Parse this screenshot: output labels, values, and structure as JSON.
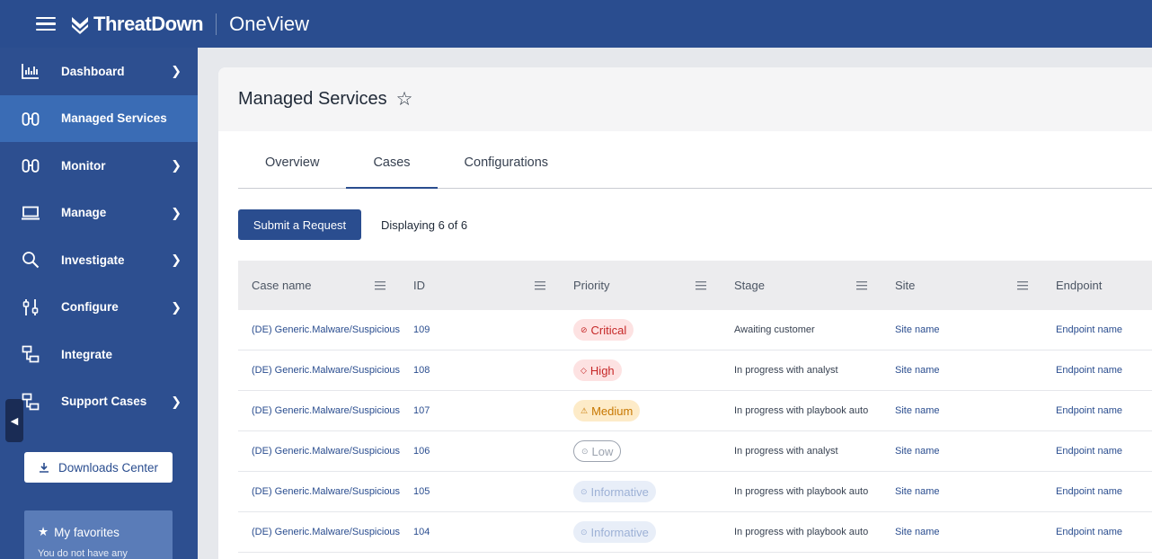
{
  "header": {
    "brand": "ThreatDown",
    "product": "OneView",
    "brand_color": "#2a4d8f"
  },
  "sidebar": {
    "items": [
      {
        "label": "Dashboard",
        "icon": "bar-chart-icon",
        "chevron": true,
        "active": false
      },
      {
        "label": "Managed Services",
        "icon": "binoculars-icon",
        "chevron": false,
        "active": true
      },
      {
        "label": "Monitor",
        "icon": "binoculars-icon",
        "chevron": true,
        "active": false
      },
      {
        "label": "Manage",
        "icon": "laptop-icon",
        "chevron": true,
        "active": false
      },
      {
        "label": "Investigate",
        "icon": "search-icon",
        "chevron": true,
        "active": false
      },
      {
        "label": "Configure",
        "icon": "sliders-icon",
        "chevron": true,
        "active": false
      },
      {
        "label": "Integrate",
        "icon": "integrate-icon",
        "chevron": false,
        "active": false
      },
      {
        "label": "Support Cases",
        "icon": "integrate-icon",
        "chevron": true,
        "active": false
      }
    ],
    "downloads_label": "Downloads Center",
    "favorites_label": "My favorites",
    "favorites_sub": "You do not have any"
  },
  "main": {
    "title": "Managed Services",
    "tabs": [
      {
        "label": "Overview",
        "active": false
      },
      {
        "label": "Cases",
        "active": true
      },
      {
        "label": "Configurations",
        "active": false
      }
    ],
    "submit_label": "Submit a Request",
    "displaying": "Displaying 6 of 6"
  },
  "table": {
    "columns": [
      "Case name",
      "ID",
      "Priority",
      "Stage",
      "Site",
      "Endpoint"
    ],
    "rows": [
      {
        "case": "(DE) Generic.Malware/Suspicious",
        "id": "109",
        "priority": "Critical",
        "level": "critical",
        "stage": "Awaiting customer",
        "site": "Site name",
        "endpoint": "Endpoint name"
      },
      {
        "case": "(DE) Generic.Malware/Suspicious",
        "id": "108",
        "priority": "High",
        "level": "high",
        "stage": "In progress with analyst",
        "site": "Site name",
        "endpoint": "Endpoint name"
      },
      {
        "case": "(DE) Generic.Malware/Suspicious",
        "id": "107",
        "priority": "Medium",
        "level": "medium",
        "stage": "In progress with playbook auto",
        "site": "Site name",
        "endpoint": "Endpoint name"
      },
      {
        "case": "(DE) Generic.Malware/Suspicious",
        "id": "106",
        "priority": "Low",
        "level": "low",
        "stage": "In progress with analyst",
        "site": "Site name",
        "endpoint": "Endpoint name"
      },
      {
        "case": "(DE) Generic.Malware/Suspicious",
        "id": "105",
        "priority": "Informative",
        "level": "info",
        "stage": "In progress with playbook auto",
        "site": "Site name",
        "endpoint": "Endpoint name"
      },
      {
        "case": "(DE) Generic.Malware/Suspicious",
        "id": "104",
        "priority": "Informative",
        "level": "info",
        "stage": "In progress with playbook auto",
        "site": "Site name",
        "endpoint": "Endpoint name"
      }
    ]
  }
}
